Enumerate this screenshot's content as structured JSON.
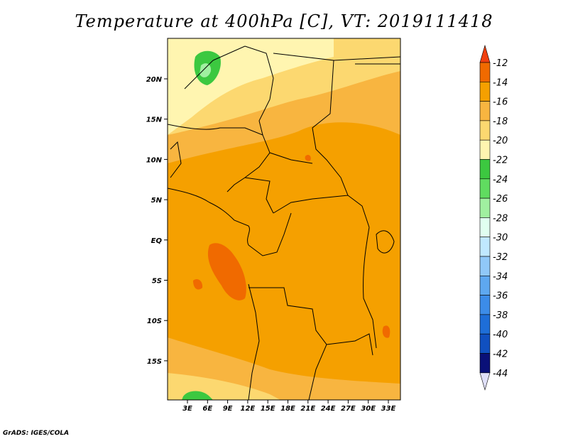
{
  "title": "Temperature at 400hPa [C], VT: 2019111418",
  "credit": "GrADS: IGES/COLA",
  "map": {
    "lon_labels": [
      "3E",
      "6E",
      "9E",
      "12E",
      "15E",
      "18E",
      "21E",
      "24E",
      "27E",
      "30E",
      "33E"
    ],
    "lat_labels": [
      "20N",
      "15N",
      "10N",
      "5N",
      "EQ",
      "5S",
      "10S",
      "15S"
    ]
  },
  "colorbar": {
    "levels": [
      "-12",
      "-14",
      "-16",
      "-18",
      "-20",
      "-22",
      "-24",
      "-26",
      "-28",
      "-30",
      "-32",
      "-34",
      "-36",
      "-38",
      "-40",
      "-42",
      "-44"
    ],
    "colors": [
      "#f04010",
      "#f06a00",
      "#f5a000",
      "#f8b540",
      "#fcd870",
      "#fff5b0",
      "#3cc840",
      "#60dc60",
      "#a0f0a0",
      "#e0fff0",
      "#c0e8ff",
      "#90c8f8",
      "#5ea8f0",
      "#3c8ce8",
      "#1e6ed8",
      "#1050c0",
      "#0a1078",
      "#e0e0f8"
    ],
    "top_color": "#f04010",
    "bottom_color": "#e0e0f8"
  }
}
